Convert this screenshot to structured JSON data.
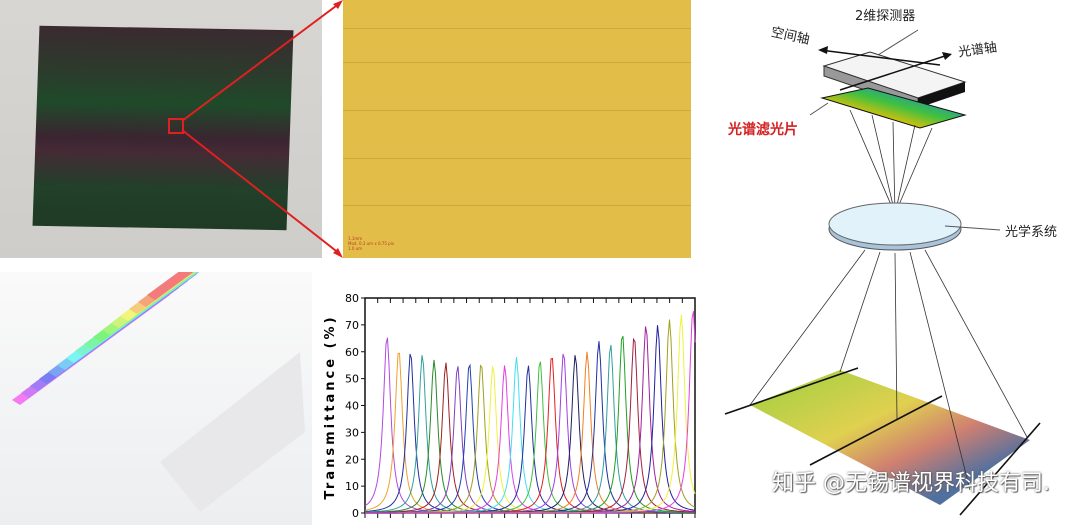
{
  "panels": {
    "photo": {
      "description_icon": "filter-chip-photo"
    },
    "microscope": {
      "scale_lines": [
        "1.1mm",
        "Mod. 0.3 um x 0.75 pix",
        "1.0 um"
      ]
    },
    "diagram": {
      "detector_label": "2维探测器",
      "spatial_axis_label": "空间轴",
      "spectral_axis_label": "光谱轴",
      "filter_label": "光谱滤光片",
      "optics_label": "光学系统",
      "filter_label_color": "#d42020"
    }
  },
  "watermark": "知乎 @无锡谱视界科技有司.",
  "chart_data": {
    "type": "line",
    "title": "",
    "xlabel": "",
    "ylabel": "Transmittance (%)",
    "ylim": [
      0,
      80
    ],
    "yticks": [
      0,
      10,
      20,
      30,
      40,
      50,
      60,
      70,
      80
    ],
    "grid": false,
    "legend": "none",
    "series_peaks": [
      66,
      61,
      60,
      59,
      57,
      56,
      55,
      56,
      56,
      55,
      55,
      58,
      55,
      57,
      59,
      60,
      59,
      60,
      64,
      63,
      67,
      66,
      70,
      70,
      72,
      74,
      76
    ],
    "series_colors": [
      "#b04adf",
      "#f0a030",
      "#2030a0",
      "#30a0a0",
      "#2a8a2a",
      "#a02020",
      "#8040c0",
      "#2040b0",
      "#a0a020",
      "#f0f040",
      "#e040e0",
      "#40e0f0",
      "#2030a0",
      "#40c040",
      "#e02020",
      "#a040e0",
      "#202060",
      "#f08020",
      "#2030a0",
      "#30a0a0",
      "#20a020",
      "#a02040",
      "#a020a0",
      "#2020a0",
      "#a0a020",
      "#f0f040",
      "#e040e0"
    ]
  }
}
